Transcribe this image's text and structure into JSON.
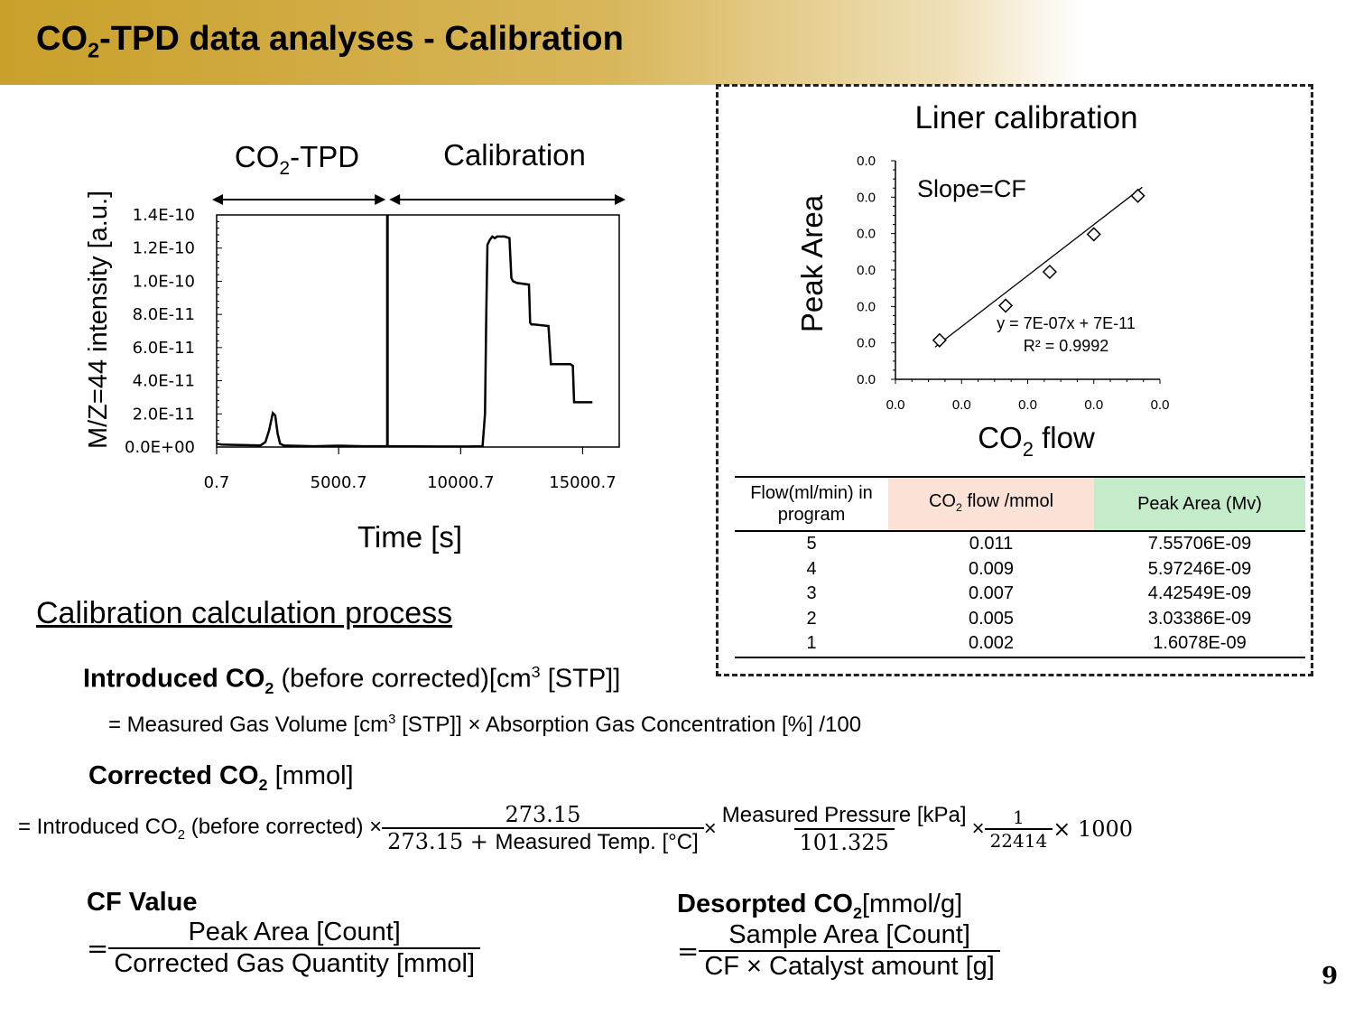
{
  "title": {
    "main": "CO",
    "sub": "2",
    "rest": "-TPD data analyses - Calibration"
  },
  "chart_data": [
    {
      "type": "line",
      "title": "",
      "xlabel": "Time [s]",
      "ylabel": "M/Z=44 intensity [a.u.]",
      "xlim": [
        0.7,
        16500
      ],
      "ylim": [
        0,
        1.4e-10
      ],
      "x_ticks": [
        "0.7",
        "5000.7",
        "10000.7",
        "15000.7"
      ],
      "y_ticks": [
        "0.0E+00",
        "2.0E-11",
        "4.0E-11",
        "6.0E-11",
        "8.0E-11",
        "1.0E-10",
        "1.2E-10",
        "1.4E-10"
      ],
      "annotations": {
        "section1_main": "CO",
        "section1_sub": "2",
        "section1_rest": "-TPD",
        "section2": "Calibration"
      },
      "divider_x": 7000,
      "series": [
        {
          "x": [
            0.7,
            200,
            1000,
            1800,
            2000,
            2150,
            2300,
            2400,
            2500,
            2600,
            2750,
            3000,
            4000,
            5000,
            6000,
            7000,
            9000,
            10400,
            10900,
            11000,
            11050,
            11100,
            11200,
            11300,
            11400,
            11500,
            11800,
            12000,
            12080,
            12150,
            12300,
            12800,
            12850,
            12900,
            13000,
            13600,
            13700,
            13750,
            14500,
            14600,
            14650,
            15400
          ],
          "y": [
            2e-12,
            1.5e-12,
            1.2e-12,
            1e-12,
            3e-12,
            1e-11,
            2.05e-11,
            1.9e-11,
            8e-12,
            2e-12,
            1e-12,
            8e-13,
            5e-13,
            8e-13,
            5e-13,
            5e-13,
            3e-13,
            3e-13,
            5e-13,
            2e-11,
            8e-11,
            1.22e-10,
            1.25e-10,
            1.27e-10,
            1.26e-10,
            1.27e-10,
            1.27e-10,
            1.26e-10,
            1.02e-10,
            1e-10,
            9.9e-11,
            9.8e-11,
            7.5e-11,
            7.4e-11,
            7.4e-11,
            7.3e-11,
            5e-11,
            5e-11,
            5e-11,
            4.9e-11,
            2.7e-11,
            2.7e-11
          ]
        }
      ]
    },
    {
      "type": "scatter",
      "title": "Liner calibration",
      "xlabel_main": "CO",
      "xlabel_sub": "2",
      "xlabel_rest": " flow",
      "ylabel": "Peak Area",
      "x_ticks": [
        "0.0",
        "0.0",
        "0.0",
        "0.0",
        "0.0"
      ],
      "y_ticks": [
        "0.0",
        "0.0",
        "0.0",
        "0.0",
        "0.0",
        "0.0",
        "0.0"
      ],
      "xlim": [
        0.0,
        0.012
      ],
      "ylim": [
        0,
        9e-09
      ],
      "annotation_slope": "Slope=CF",
      "trendline_equation": "y = 7E-07x + 7E-11",
      "r_squared": "R² = 0.9992",
      "x": [
        0.002,
        0.005,
        0.007,
        0.009,
        0.011
      ],
      "y": [
        1.6078e-09,
        3.03386e-09,
        4.42549e-09,
        5.97246e-09,
        7.55706e-09
      ],
      "trend": {
        "slope": 7e-07,
        "intercept": 7e-11
      }
    }
  ],
  "table": {
    "headers": {
      "flow": "Flow(ml/min) in program",
      "co2_main": "CO",
      "co2_sub": "2",
      "co2_rest": " flow /mmol",
      "area": "Peak Area (Mv)"
    },
    "rows": [
      [
        "5",
        "0.011",
        "7.55706E-09"
      ],
      [
        "4",
        "0.009",
        "5.97246E-09"
      ],
      [
        "3",
        "0.007",
        "4.42549E-09"
      ],
      [
        "2",
        "0.005",
        "3.03386E-09"
      ],
      [
        "1",
        "0.002",
        "1.6078E-09"
      ]
    ]
  },
  "process": {
    "heading": "Calibration calculation process",
    "introduced_bold": "Introduced CO",
    "introduced_sub": "2",
    "introduced_rest": " (before corrected)[cm",
    "introduced_sup": "3",
    "introduced_end": " [STP]]",
    "formula1_a": "= Measured Gas Volume [cm",
    "formula1_sup": "3",
    "formula1_b": " [STP]] × Absorption Gas Concentration [%] /100",
    "corrected_bold": "Corrected CO",
    "corrected_sub": "2",
    "corrected_rest": " [mmol]",
    "f2_prefix": "= Introduced CO",
    "f2_prefix_sub": "2",
    "f2_prefix_rest": " (before corrected) ×",
    "f2_frac1_num": "273.15",
    "f2_frac1_den_a": "273.15 + ",
    "f2_frac1_den_b": "Measured Temp.  [°C]",
    "f2_times": "×",
    "f2_frac2_num": "Measured Pressure [kPa]",
    "f2_frac2_den": "101.325",
    "f2_frac3_num": "1",
    "f2_frac3_den": "22414",
    "f2_suffix": "× 1000",
    "cf_bold": "CF Value",
    "cf_eq": "=",
    "cf_num": "Peak Area [Count]",
    "cf_den": "Corrected Gas Quantity [mmol]",
    "des_bold": "Desorpted CO",
    "des_sub": "2",
    "des_rest": "[mmol/g]",
    "des_eq": "=",
    "des_num": "Sample Area [Count]",
    "des_den": "CF × Catalyst amount [g]"
  },
  "page_number": "9"
}
